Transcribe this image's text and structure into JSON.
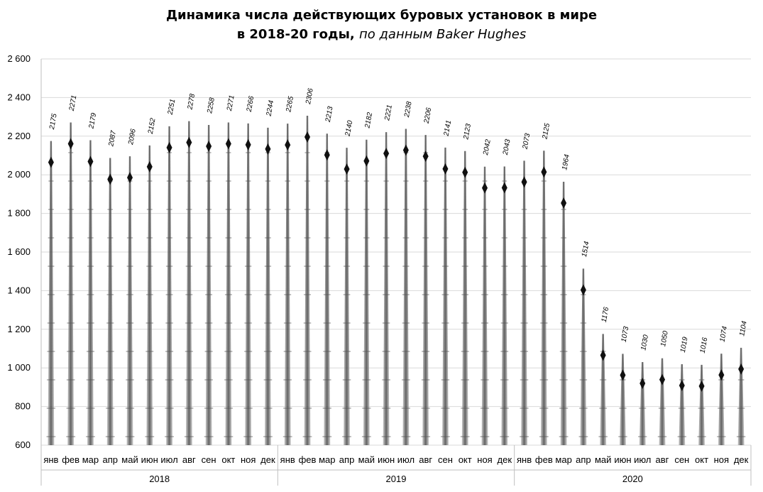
{
  "chart_data": {
    "type": "bar",
    "title_line1": "Динамика числа действующих буровых установок в мире",
    "title_line2_bold": "в 2018-20 годы,",
    "title_line2_italic": "по данным Baker Hughes",
    "ylim": [
      600,
      2600
    ],
    "yticks": [
      "600",
      "800",
      "1 000",
      "1 200",
      "1 400",
      "1 600",
      "1 800",
      "2 000",
      "2 200",
      "2 400",
      "2 600"
    ],
    "ytick_values": [
      600,
      800,
      1000,
      1200,
      1400,
      1600,
      1800,
      2000,
      2200,
      2400,
      2600
    ],
    "grid": true,
    "years": [
      "2018",
      "2019",
      "2020"
    ],
    "months": [
      "янв",
      "фев",
      "мар",
      "апр",
      "май",
      "июн",
      "июл",
      "авг",
      "сен",
      "окт",
      "ноя",
      "дек"
    ],
    "values": [
      2175,
      2271,
      2179,
      2087,
      2096,
      2152,
      2251,
      2278,
      2258,
      2271,
      2266,
      2244,
      2265,
      2306,
      2213,
      2140,
      2182,
      2221,
      2238,
      2206,
      2141,
      2123,
      2042,
      2043,
      2073,
      2125,
      1964,
      1514,
      1176,
      1073,
      1030,
      1050,
      1019,
      1016,
      1074,
      1104
    ],
    "bar_color": "#3a3a3a"
  }
}
